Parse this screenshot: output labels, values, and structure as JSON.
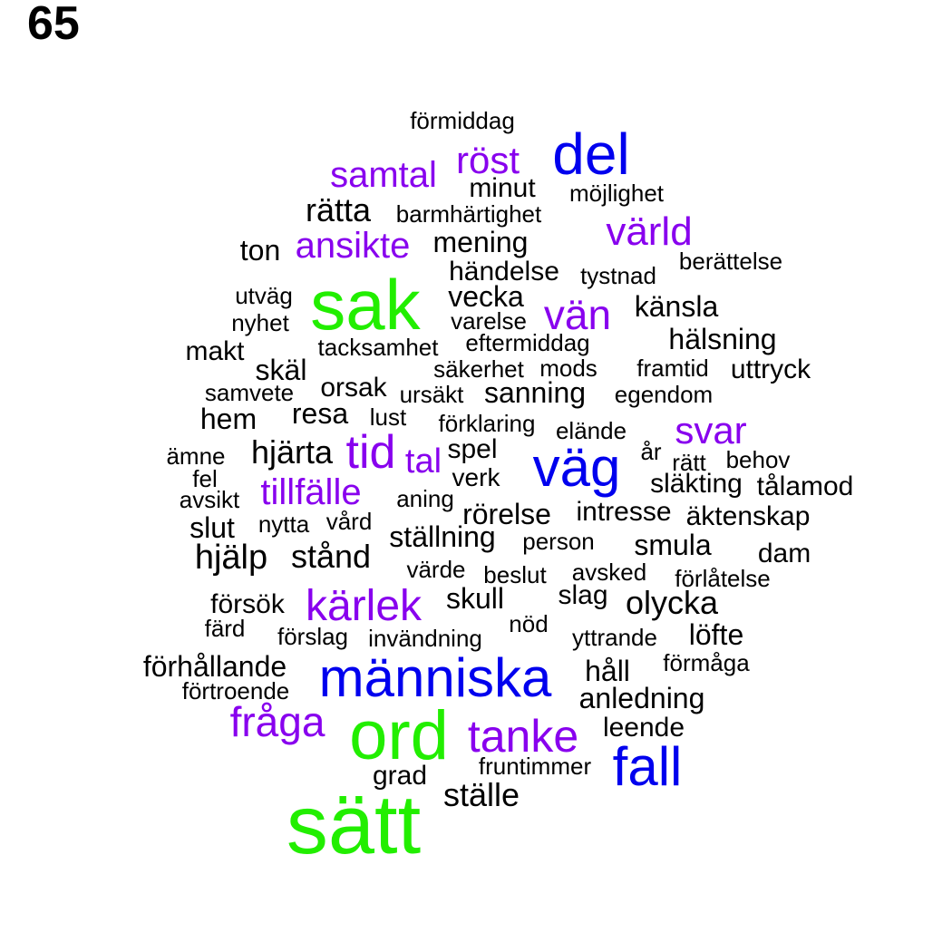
{
  "panel_label": "65",
  "colors": {
    "tier1": "#22ee00",
    "tier2": "#0000ee",
    "tier3": "#8800ee",
    "tier4": "#000000"
  },
  "words": [
    {
      "text": "sätt",
      "tier": 1
    },
    {
      "text": "ord",
      "tier": 1
    },
    {
      "text": "sak",
      "tier": 1
    },
    {
      "text": "del",
      "tier": 2
    },
    {
      "text": "väg",
      "tier": 2
    },
    {
      "text": "människa",
      "tier": 2
    },
    {
      "text": "fall",
      "tier": 2
    },
    {
      "text": "samtal",
      "tier": 3
    },
    {
      "text": "röst",
      "tier": 3
    },
    {
      "text": "värld",
      "tier": 3
    },
    {
      "text": "ansikte",
      "tier": 3
    },
    {
      "text": "vän",
      "tier": 3
    },
    {
      "text": "svar",
      "tier": 3
    },
    {
      "text": "tid",
      "tier": 3
    },
    {
      "text": "tal",
      "tier": 3
    },
    {
      "text": "tillfälle",
      "tier": 3
    },
    {
      "text": "kärlek",
      "tier": 3
    },
    {
      "text": "fråga",
      "tier": 3
    },
    {
      "text": "tanke",
      "tier": 3
    },
    {
      "text": "förmiddag",
      "tier": 4
    },
    {
      "text": "minut",
      "tier": 4
    },
    {
      "text": "möjlighet",
      "tier": 4
    },
    {
      "text": "rätta",
      "tier": 4
    },
    {
      "text": "barmhärtighet",
      "tier": 4
    },
    {
      "text": "ton",
      "tier": 4
    },
    {
      "text": "mening",
      "tier": 4
    },
    {
      "text": "berättelse",
      "tier": 4
    },
    {
      "text": "händelse",
      "tier": 4
    },
    {
      "text": "tystnad",
      "tier": 4
    },
    {
      "text": "utväg",
      "tier": 4
    },
    {
      "text": "vecka",
      "tier": 4
    },
    {
      "text": "känsla",
      "tier": 4
    },
    {
      "text": "nyhet",
      "tier": 4
    },
    {
      "text": "varelse",
      "tier": 4
    },
    {
      "text": "hälsning",
      "tier": 4
    },
    {
      "text": "makt",
      "tier": 4
    },
    {
      "text": "tacksamhet",
      "tier": 4
    },
    {
      "text": "eftermiddag",
      "tier": 4
    },
    {
      "text": "skäl",
      "tier": 4
    },
    {
      "text": "säkerhet",
      "tier": 4
    },
    {
      "text": "mods",
      "tier": 4
    },
    {
      "text": "framtid",
      "tier": 4
    },
    {
      "text": "uttryck",
      "tier": 4
    },
    {
      "text": "samvete",
      "tier": 4
    },
    {
      "text": "orsak",
      "tier": 4
    },
    {
      "text": "ursäkt",
      "tier": 4
    },
    {
      "text": "sanning",
      "tier": 4
    },
    {
      "text": "egendom",
      "tier": 4
    },
    {
      "text": "hem",
      "tier": 4
    },
    {
      "text": "resa",
      "tier": 4
    },
    {
      "text": "lust",
      "tier": 4
    },
    {
      "text": "förklaring",
      "tier": 4
    },
    {
      "text": "elände",
      "tier": 4
    },
    {
      "text": "ämne",
      "tier": 4
    },
    {
      "text": "hjärta",
      "tier": 4
    },
    {
      "text": "spel",
      "tier": 4
    },
    {
      "text": "år",
      "tier": 4
    },
    {
      "text": "rätt",
      "tier": 4
    },
    {
      "text": "behov",
      "tier": 4
    },
    {
      "text": "fel",
      "tier": 4
    },
    {
      "text": "verk",
      "tier": 4
    },
    {
      "text": "släkting",
      "tier": 4
    },
    {
      "text": "tålamod",
      "tier": 4
    },
    {
      "text": "avsikt",
      "tier": 4
    },
    {
      "text": "aning",
      "tier": 4
    },
    {
      "text": "rörelse",
      "tier": 4
    },
    {
      "text": "intresse",
      "tier": 4
    },
    {
      "text": "äktenskap",
      "tier": 4
    },
    {
      "text": "slut",
      "tier": 4
    },
    {
      "text": "nytta",
      "tier": 4
    },
    {
      "text": "vård",
      "tier": 4
    },
    {
      "text": "ställning",
      "tier": 4
    },
    {
      "text": "person",
      "tier": 4
    },
    {
      "text": "smula",
      "tier": 4
    },
    {
      "text": "dam",
      "tier": 4
    },
    {
      "text": "hjälp",
      "tier": 4
    },
    {
      "text": "stånd",
      "tier": 4
    },
    {
      "text": "värde",
      "tier": 4
    },
    {
      "text": "beslut",
      "tier": 4
    },
    {
      "text": "avsked",
      "tier": 4
    },
    {
      "text": "förlåtelse",
      "tier": 4
    },
    {
      "text": "försök",
      "tier": 4
    },
    {
      "text": "skull",
      "tier": 4
    },
    {
      "text": "slag",
      "tier": 4
    },
    {
      "text": "olycka",
      "tier": 4
    },
    {
      "text": "färd",
      "tier": 4
    },
    {
      "text": "nöd",
      "tier": 4
    },
    {
      "text": "förslag",
      "tier": 4
    },
    {
      "text": "invändning",
      "tier": 4
    },
    {
      "text": "yttrande",
      "tier": 4
    },
    {
      "text": "löfte",
      "tier": 4
    },
    {
      "text": "förmåga",
      "tier": 4
    },
    {
      "text": "förhållande",
      "tier": 4
    },
    {
      "text": "håll",
      "tier": 4
    },
    {
      "text": "förtroende",
      "tier": 4
    },
    {
      "text": "anledning",
      "tier": 4
    },
    {
      "text": "leende",
      "tier": 4
    },
    {
      "text": "fruntimmer",
      "tier": 4
    },
    {
      "text": "grad",
      "tier": 4
    },
    {
      "text": "ställe",
      "tier": 4
    }
  ]
}
